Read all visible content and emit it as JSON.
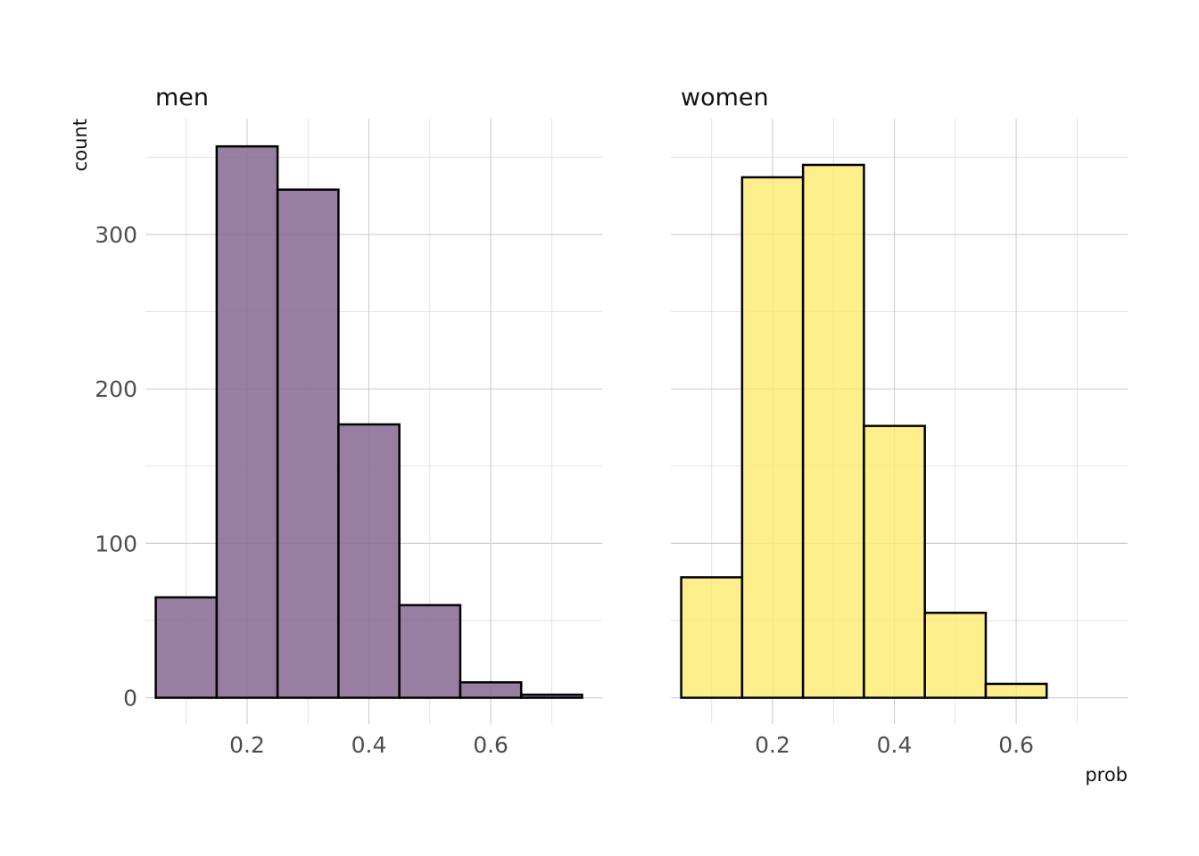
{
  "chart_data": [
    {
      "type": "bar",
      "title": "men",
      "color": "#8a6c93",
      "fill_opacity": 0.88,
      "bin_edges": [
        0.05,
        0.15,
        0.25,
        0.35,
        0.45,
        0.55,
        0.65,
        0.75
      ],
      "values": [
        65,
        357,
        329,
        177,
        60,
        10,
        2
      ],
      "xlim": [
        0.033,
        0.783
      ],
      "ylim": [
        -17,
        375
      ],
      "x_ticks": [
        0.2,
        0.4,
        0.6
      ],
      "x_tick_labels": [
        "0.2",
        "0.4",
        "0.6"
      ],
      "y_ticks": [
        0,
        100,
        200,
        300
      ],
      "y_tick_labels": [
        "0",
        "100",
        "200",
        "300"
      ],
      "ylabel": "count",
      "xlabel": "",
      "grid": true
    },
    {
      "type": "bar",
      "title": "women",
      "color": "#fdea6b",
      "fill_opacity": 0.78,
      "bin_edges": [
        0.05,
        0.15,
        0.25,
        0.35,
        0.45,
        0.55,
        0.65,
        0.75
      ],
      "values": [
        78,
        337,
        345,
        176,
        55,
        9,
        0
      ],
      "xlim": [
        0.033,
        0.783
      ],
      "ylim": [
        -17,
        375
      ],
      "x_ticks": [
        0.2,
        0.4,
        0.6
      ],
      "x_tick_labels": [
        "0.2",
        "0.4",
        "0.6"
      ],
      "y_ticks": [
        0,
        100,
        200,
        300
      ],
      "y_tick_labels": [],
      "ylabel": "",
      "xlabel": "prob",
      "grid": true
    }
  ]
}
